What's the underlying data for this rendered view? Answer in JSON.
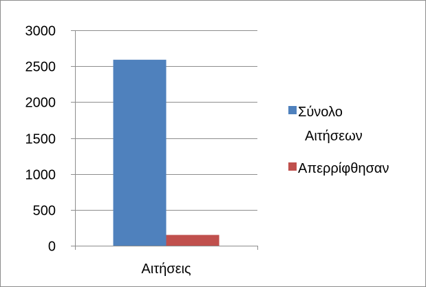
{
  "chart_data": {
    "type": "bar",
    "categories": [
      "Αιτήσεις"
    ],
    "series": [
      {
        "name": "Σύνολο Αιτήσεων",
        "values": [
          2590
        ],
        "color": "#4f81bd"
      },
      {
        "name": "Απερρίφθησαν",
        "values": [
          150
        ],
        "color": "#c0504d"
      }
    ],
    "ylim": [
      0,
      3000
    ],
    "yticks": [
      0,
      500,
      1000,
      1500,
      2000,
      2500,
      3000
    ],
    "title": "",
    "xlabel": "",
    "ylabel": "",
    "grid": true,
    "legend_position": "right"
  },
  "legend": {
    "items": [
      {
        "lines": [
          "Σύνολο",
          "Αιτήσεων"
        ],
        "color": "#4f81bd"
      },
      {
        "lines": [
          "Απερρίφθησαν"
        ],
        "color": "#c0504d"
      }
    ]
  }
}
